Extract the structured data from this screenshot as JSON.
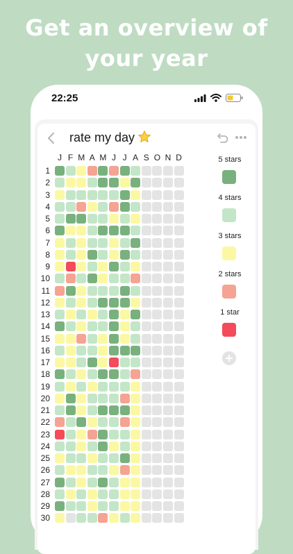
{
  "headline": {
    "line1": "Get an overview of",
    "line2": "your year"
  },
  "status_bar": {
    "time": "22:25"
  },
  "header": {
    "title": "rate my day",
    "title_emoji": "star"
  },
  "colors": {
    "background": "#bfdcc3",
    "5": "#79b17e",
    "4": "#c3e6c8",
    "3": "#fbf8a4",
    "2": "#f5a393",
    "1": "#f34b5a",
    "0": "#e4e4e4"
  },
  "months": [
    "J",
    "F",
    "M",
    "A",
    "M",
    "J",
    "J",
    "A",
    "S",
    "O",
    "N",
    "D"
  ],
  "days": [
    "1",
    "2",
    "3",
    "4",
    "5",
    "6",
    "7",
    "8",
    "9",
    "10",
    "11",
    "12",
    "13",
    "14",
    "15",
    "16",
    "17",
    "18",
    "19",
    "20",
    "21",
    "22",
    "23",
    "24",
    "25",
    "26",
    "27",
    "28",
    "29",
    "30"
  ],
  "grid": [
    [
      5,
      4,
      3,
      2,
      5,
      2,
      5,
      4,
      0,
      0,
      0,
      0
    ],
    [
      4,
      3,
      3,
      4,
      5,
      5,
      3,
      5,
      0,
      0,
      0,
      0
    ],
    [
      3,
      4,
      4,
      4,
      4,
      4,
      5,
      3,
      0,
      0,
      0,
      0
    ],
    [
      4,
      4,
      2,
      3,
      4,
      2,
      5,
      4,
      0,
      0,
      0,
      0
    ],
    [
      4,
      5,
      5,
      4,
      4,
      3,
      4,
      3,
      0,
      0,
      0,
      0
    ],
    [
      5,
      3,
      3,
      4,
      5,
      5,
      5,
      4,
      0,
      0,
      0,
      0
    ],
    [
      3,
      4,
      3,
      4,
      4,
      3,
      4,
      5,
      0,
      0,
      0,
      0
    ],
    [
      3,
      4,
      3,
      5,
      4,
      3,
      5,
      4,
      0,
      0,
      0,
      0
    ],
    [
      3,
      1,
      3,
      4,
      3,
      5,
      4,
      3,
      0,
      0,
      0,
      0
    ],
    [
      4,
      2,
      4,
      5,
      3,
      4,
      4,
      2,
      0,
      0,
      0,
      0
    ],
    [
      2,
      5,
      3,
      4,
      4,
      4,
      5,
      4,
      0,
      0,
      0,
      0
    ],
    [
      3,
      4,
      3,
      4,
      5,
      5,
      5,
      3,
      0,
      0,
      0,
      0
    ],
    [
      4,
      3,
      4,
      3,
      4,
      5,
      3,
      5,
      0,
      0,
      0,
      0
    ],
    [
      5,
      4,
      3,
      4,
      4,
      5,
      3,
      4,
      0,
      0,
      0,
      0
    ],
    [
      3,
      3,
      2,
      4,
      3,
      5,
      3,
      4,
      0,
      0,
      0,
      0
    ],
    [
      4,
      3,
      4,
      4,
      3,
      5,
      5,
      5,
      0,
      0,
      0,
      0
    ],
    [
      3,
      3,
      4,
      5,
      3,
      1,
      4,
      4,
      0,
      0,
      0,
      0
    ],
    [
      5,
      4,
      3,
      4,
      5,
      5,
      4,
      2,
      0,
      0,
      0,
      0
    ],
    [
      4,
      3,
      4,
      3,
      4,
      4,
      4,
      3,
      0,
      0,
      0,
      0
    ],
    [
      3,
      5,
      3,
      4,
      4,
      4,
      2,
      3,
      0,
      0,
      0,
      0
    ],
    [
      4,
      5,
      3,
      4,
      5,
      5,
      5,
      3,
      0,
      0,
      0,
      0
    ],
    [
      2,
      4,
      5,
      3,
      4,
      4,
      2,
      3,
      0,
      0,
      0,
      0
    ],
    [
      1,
      4,
      3,
      2,
      5,
      4,
      4,
      3,
      0,
      0,
      0,
      0
    ],
    [
      4,
      4,
      3,
      4,
      5,
      3,
      4,
      3,
      0,
      0,
      0,
      0
    ],
    [
      3,
      4,
      4,
      3,
      4,
      4,
      5,
      3,
      0,
      0,
      0,
      0
    ],
    [
      4,
      3,
      3,
      4,
      4,
      3,
      2,
      3,
      0,
      0,
      0,
      0
    ],
    [
      5,
      4,
      3,
      4,
      5,
      4,
      3,
      3,
      0,
      0,
      0,
      0
    ],
    [
      4,
      3,
      4,
      3,
      4,
      4,
      3,
      3,
      0,
      0,
      0,
      0
    ],
    [
      5,
      4,
      4,
      3,
      4,
      4,
      3,
      3,
      0,
      0,
      0,
      0
    ],
    [
      3,
      0,
      4,
      4,
      2,
      3,
      4,
      3,
      0,
      0,
      0,
      0
    ]
  ],
  "legend": [
    {
      "label": "5 stars",
      "level": "5"
    },
    {
      "label": "4 stars",
      "level": "4"
    },
    {
      "label": "3 stars",
      "level": "3"
    },
    {
      "label": "2 stars",
      "level": "2"
    },
    {
      "label": "1 star",
      "level": "1"
    }
  ]
}
